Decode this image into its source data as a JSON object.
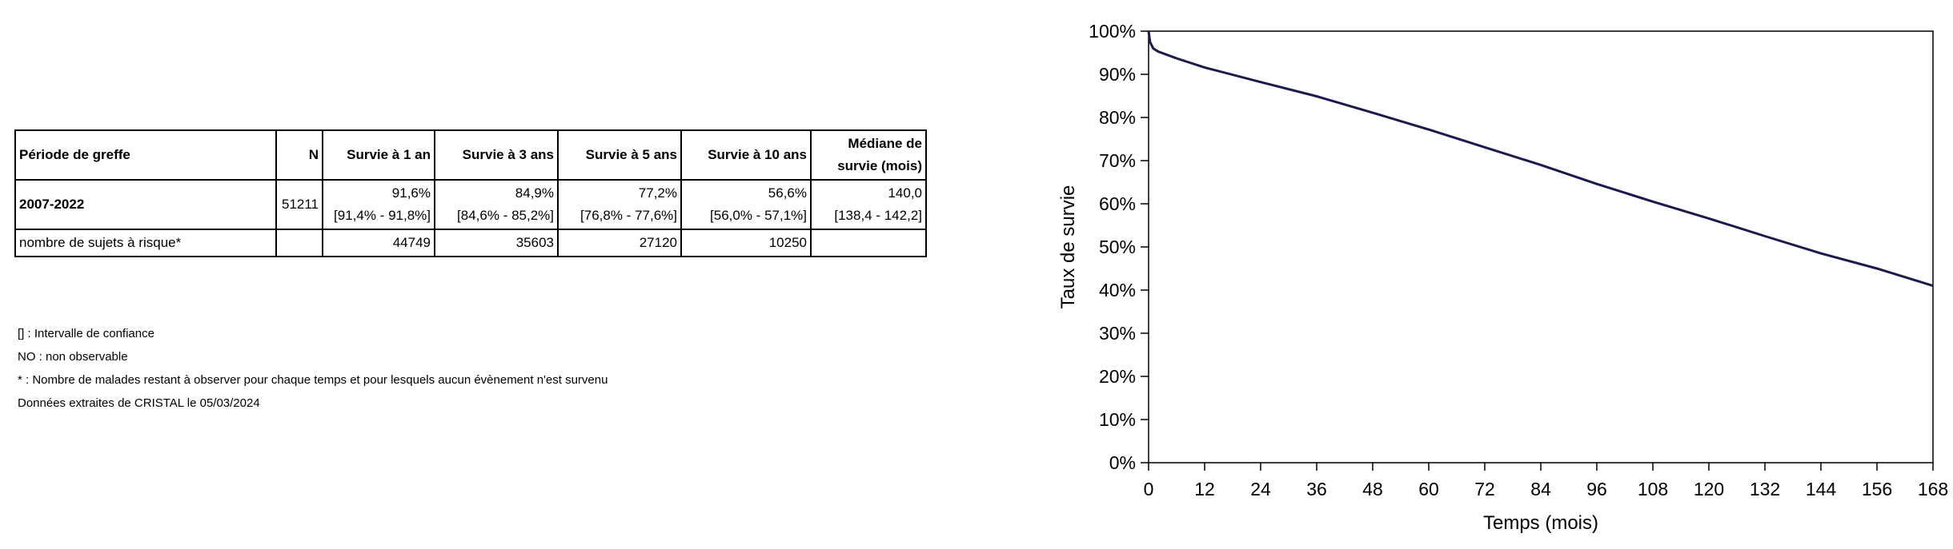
{
  "table": {
    "headers": [
      "Période de greffe",
      "N",
      "Survie à 1 an",
      "Survie à 3 ans",
      "Survie à 5 ans",
      "Survie à 10 ans",
      [
        "Médiane de",
        "survie (mois)"
      ]
    ],
    "period_row": {
      "label": "2007-2022",
      "n": "51211",
      "values": [
        "91,6%",
        "84,9%",
        "77,2%",
        "56,6%",
        "140,0"
      ],
      "ci": [
        "[91,4% - 91,8%]",
        "[84,6% - 85,2%]",
        "[76,8% - 77,6%]",
        "[56,0% - 57,1%]",
        "[138,4 - 142,2]"
      ]
    },
    "risk_row": {
      "label": "nombre de sujets à risque*",
      "n": "",
      "values": [
        "44749",
        "35603",
        "27120",
        "10250",
        ""
      ]
    }
  },
  "notes": [
    "[] : Intervalle de confiance",
    "NO : non observable",
    "* : Nombre de malades restant à observer pour chaque temps et pour lesquels aucun évènement n'est survenu",
    "Données extraites de CRISTAL le 05/03/2024"
  ],
  "chart_data": {
    "type": "line",
    "xlabel": "Temps (mois)",
    "ylabel": "Taux de survie",
    "xlim": [
      0,
      168
    ],
    "ylim": [
      0,
      100
    ],
    "x_ticks": [
      "0",
      "12",
      "24",
      "36",
      "48",
      "60",
      "72",
      "84",
      "96",
      "108",
      "120",
      "132",
      "144",
      "156",
      "168"
    ],
    "y_ticks": [
      "0%",
      "10%",
      "20%",
      "30%",
      "40%",
      "50%",
      "60%",
      "70%",
      "80%",
      "90%",
      "100%"
    ],
    "grid": false,
    "line_color": "#1a1a4e",
    "series": [
      {
        "x": [
          0,
          0.3,
          1,
          2,
          4,
          6,
          12,
          24,
          36,
          48,
          60,
          72,
          84,
          96,
          108,
          120,
          132,
          144,
          156,
          168
        ],
        "y": [
          100,
          97.5,
          96,
          95.3,
          94.5,
          93.7,
          91.6,
          88.2,
          84.9,
          81.1,
          77.2,
          73.1,
          69.0,
          64.6,
          60.5,
          56.6,
          52.5,
          48.5,
          45.0,
          41.0
        ]
      }
    ]
  }
}
